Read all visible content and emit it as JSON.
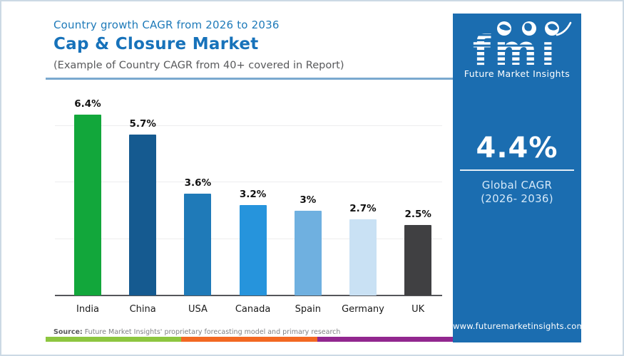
{
  "header": {
    "kicker": "Country growth CAGR from 2026 to 2036",
    "title": "Cap & Closure Market",
    "subtitle": "(Example of Country CAGR from 40+ covered in Report)"
  },
  "chart_data": {
    "type": "bar",
    "title": "Country growth CAGR from 2026 to 2036",
    "categories": [
      "India",
      "China",
      "USA",
      "Canada",
      "Spain",
      "Germany",
      "UK"
    ],
    "values": [
      6.4,
      5.7,
      3.6,
      3.2,
      3.0,
      2.7,
      2.5
    ],
    "value_labels": [
      "6.4%",
      "5.7%",
      "3.6%",
      "3.2%",
      "3%",
      "2.7%",
      "2.5%"
    ],
    "bar_colors": [
      "#12a73b",
      "#155a90",
      "#1f7ab8",
      "#2694dc",
      "#6fb0e0",
      "#c9e1f4",
      "#404042"
    ],
    "xlabel": "",
    "ylabel": "",
    "ylim": [
      0,
      7.1
    ],
    "gridline_values": [
      2,
      4,
      6
    ],
    "grid": "horizontal-light",
    "legend": "none"
  },
  "sidebar": {
    "bg_color": "#1b6db0",
    "logo_text": "fmi",
    "logo_caption": "Future Market Insights",
    "stat_value": "4.4%",
    "stat_label_line1": "Global CAGR",
    "stat_label_line2": "(2026- 2036)",
    "website": "www.futuremarketinsights.com"
  },
  "footer": {
    "source_label": "Source:",
    "source_text": " Future Market Insights' proprietary forecasting model and primary research",
    "stripe_colors": [
      "#8dc63f",
      "#f26822",
      "#92278f"
    ]
  }
}
